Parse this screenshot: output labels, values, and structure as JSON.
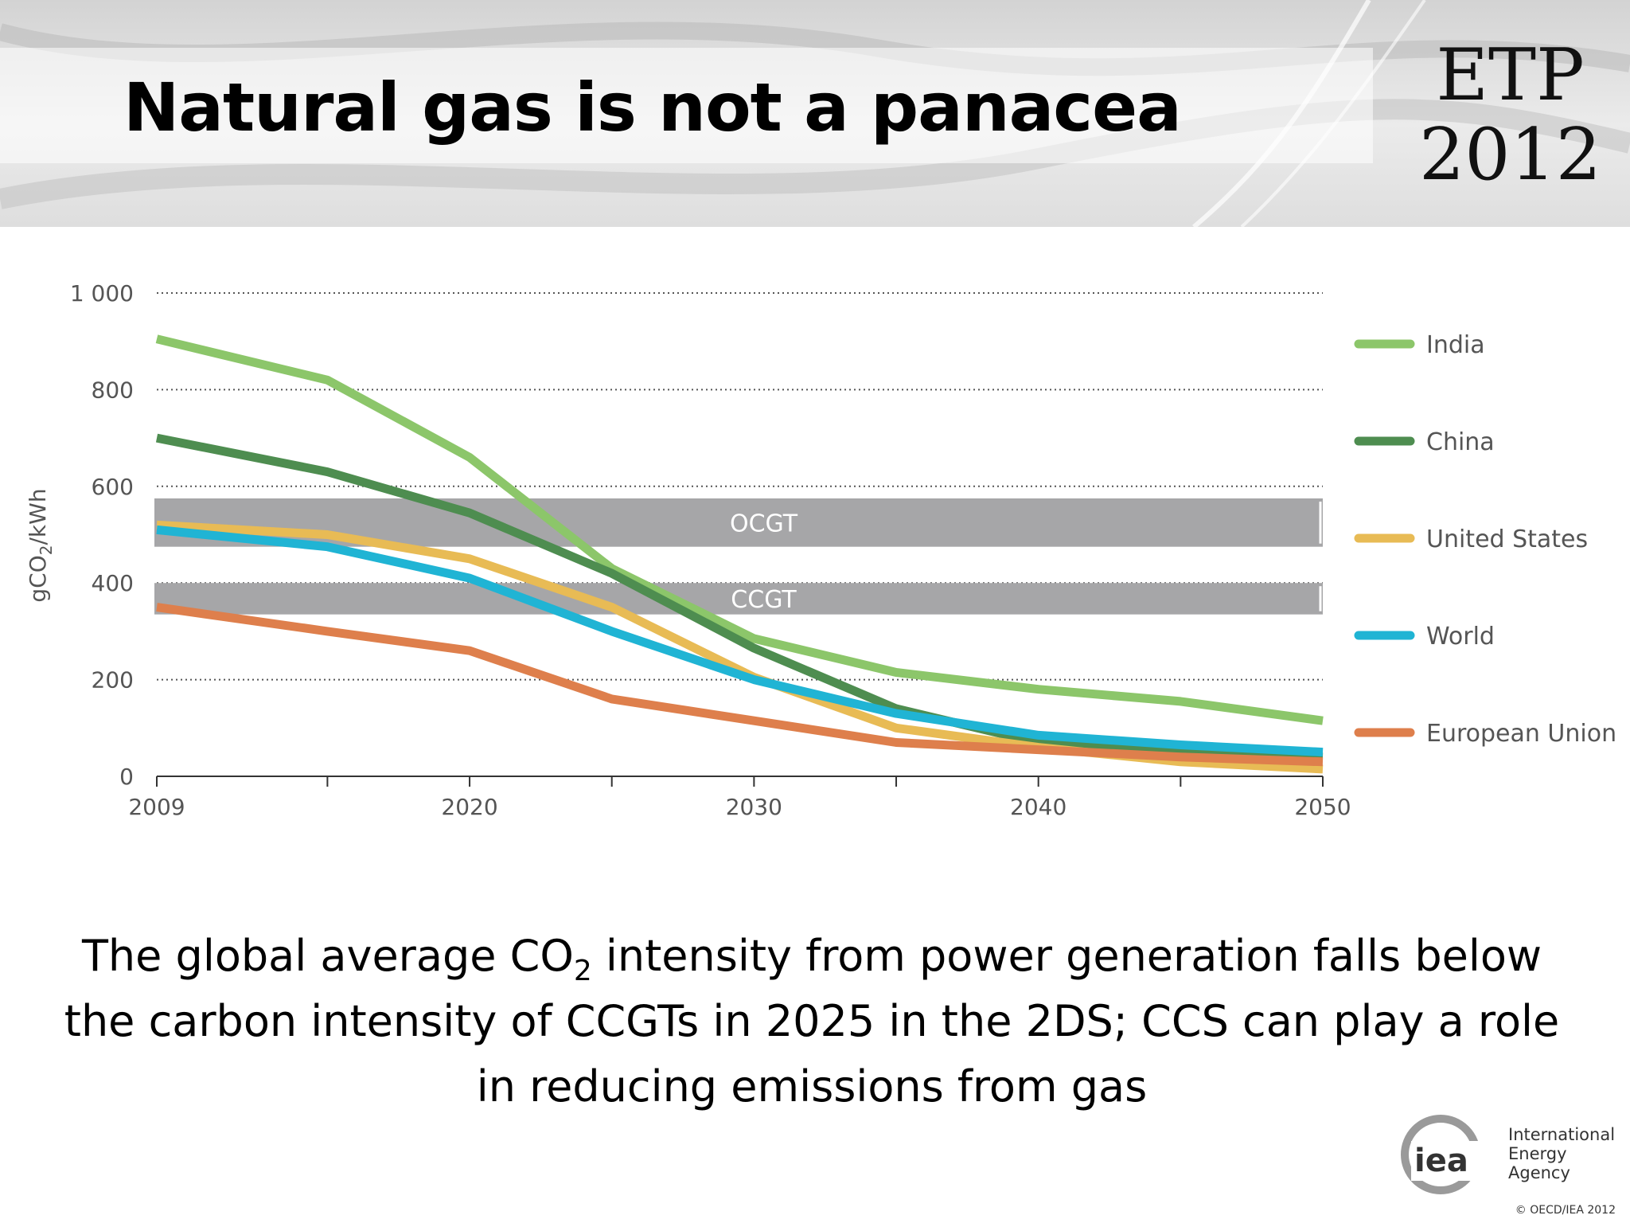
{
  "slide": {
    "title": "Natural gas is not a panacea",
    "logo_line1": "ETP",
    "logo_line2": "2012",
    "caption_part1": "The global average CO",
    "caption_sub": "2",
    "caption_part2": " intensity from power generation falls below the carbon intensity of CCGTs in 2025 in the 2DS; CCS can play a role in reducing emissions from gas",
    "org_line1": "International",
    "org_line2": "Energy Agency",
    "org_mark": "iea",
    "copyright": "© OECD/IEA 2012"
  },
  "chart_data": {
    "type": "line",
    "title": "",
    "xlabel": "",
    "ylabel_main": "gCO",
    "ylabel_sub": "2",
    "ylabel_tail": "/kWh",
    "xlim": [
      2009,
      2050
    ],
    "ylim": [
      0,
      1000
    ],
    "x_tick_labels": [
      "2009",
      "2020",
      "2030",
      "2040",
      "2050"
    ],
    "x_tick_values": [
      2009,
      2020,
      2030,
      2040,
      2050
    ],
    "x_minor_ticks": [
      2015,
      2025,
      2035,
      2045
    ],
    "y_tick_labels": [
      "0",
      "200",
      "400",
      "600",
      "800",
      "1 000"
    ],
    "y_tick_values": [
      0,
      200,
      400,
      600,
      800,
      1000
    ],
    "grid": "horizontal dotted",
    "legend_position": "right",
    "x": [
      2009,
      2015,
      2020,
      2025,
      2030,
      2035,
      2040,
      2045,
      2050
    ],
    "series": [
      {
        "name": "India",
        "color": "#8cc66a",
        "values": [
          905,
          820,
          660,
          430,
          285,
          215,
          180,
          155,
          115
        ]
      },
      {
        "name": "China",
        "color": "#4e8d50",
        "values": [
          700,
          630,
          545,
          420,
          265,
          140,
          70,
          50,
          40
        ]
      },
      {
        "name": "United States",
        "color": "#e8bb55",
        "values": [
          520,
          500,
          450,
          350,
          205,
          100,
          60,
          30,
          15
        ]
      },
      {
        "name": "World",
        "color": "#20b4d4",
        "values": [
          510,
          475,
          410,
          300,
          200,
          130,
          85,
          65,
          50
        ]
      },
      {
        "name": "European Union",
        "color": "#de7f4c",
        "values": [
          350,
          300,
          260,
          160,
          115,
          70,
          55,
          40,
          30
        ]
      }
    ],
    "bands": [
      {
        "label": "OCGT",
        "y_low": 475,
        "y_high": 575,
        "color": "#a6a6a8"
      },
      {
        "label": "CCGT",
        "y_low": 335,
        "y_high": 400,
        "color": "#a6a6a8"
      }
    ]
  }
}
